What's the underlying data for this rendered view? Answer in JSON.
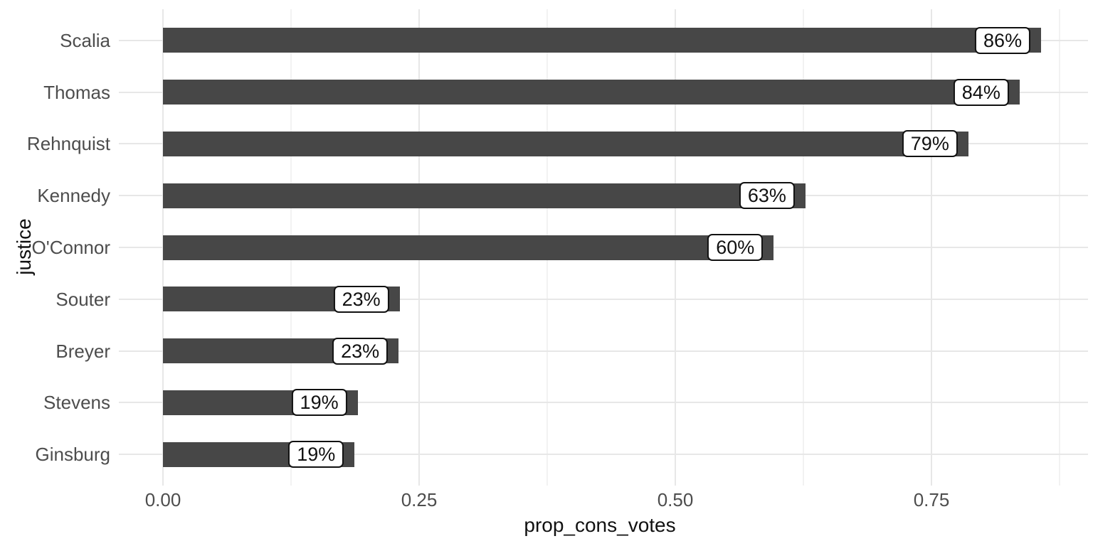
{
  "figure": {
    "x_axis_title": "prop_cons_votes",
    "y_axis_title": "justice"
  },
  "chart_data": {
    "type": "bar",
    "orientation": "horizontal",
    "title": "",
    "xlabel": "prop_cons_votes",
    "ylabel": "justice",
    "categories": [
      "Scalia",
      "Thomas",
      "Rehnquist",
      "Kennedy",
      "O'Connor",
      "Souter",
      "Breyer",
      "Stevens",
      "Ginsburg"
    ],
    "values": [
      0.857,
      0.836,
      0.786,
      0.627,
      0.596,
      0.231,
      0.23,
      0.19,
      0.187
    ],
    "bar_labels": [
      "86%",
      "84%",
      "79%",
      "63%",
      "60%",
      "23%",
      "23%",
      "19%",
      "19%"
    ],
    "x_ticks": [
      {
        "value": 0.0,
        "label": "0.00"
      },
      {
        "value": 0.25,
        "label": "0.25"
      },
      {
        "value": 0.5,
        "label": "0.50"
      },
      {
        "value": 0.75,
        "label": "0.75"
      }
    ],
    "x_minor_breaks": [
      0.125,
      0.375,
      0.625,
      0.875
    ],
    "xlim": [
      -0.043,
      0.903
    ],
    "grid": true,
    "legend": false,
    "colors": {
      "bar": "#474747",
      "grid_major": "#E7E7E7",
      "grid_minor": "#F2F2F2",
      "axis_text": "#4D4D4D",
      "axis_title": "#111111",
      "label_bg": "#FFFFFF",
      "label_border": "#111111",
      "background": "#FFFFFF"
    }
  }
}
